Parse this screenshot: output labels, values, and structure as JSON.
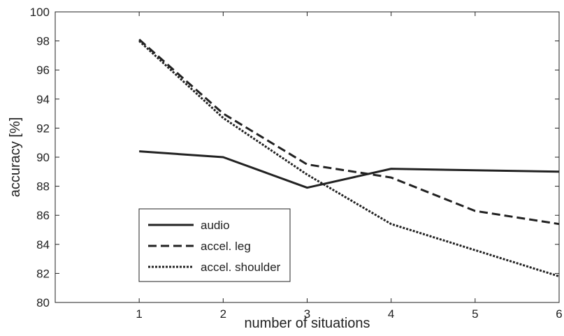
{
  "chart_data": {
    "type": "line",
    "title": "",
    "xlabel": "number of situations",
    "ylabel": "accuracy [%]",
    "xlim": [
      0,
      6
    ],
    "ylim": [
      80,
      100
    ],
    "x_ticks": [
      1,
      2,
      3,
      4,
      5,
      6
    ],
    "y_ticks": [
      80,
      82,
      84,
      86,
      88,
      90,
      92,
      94,
      96,
      98,
      100
    ],
    "x": [
      1,
      2,
      3,
      4,
      5,
      6
    ],
    "grid": false,
    "legend_position": "bottom-left",
    "series": [
      {
        "name": "audio",
        "style": "solid",
        "color": "#222222",
        "values": [
          90.4,
          90.0,
          87.9,
          89.2,
          89.1,
          89.0
        ]
      },
      {
        "name": "accel. leg",
        "style": "dashed",
        "color": "#222222",
        "values": [
          98.1,
          93.0,
          89.5,
          88.6,
          86.3,
          85.4
        ]
      },
      {
        "name": "accel. shoulder",
        "style": "dotted",
        "color": "#222222",
        "values": [
          98.0,
          92.7,
          88.8,
          85.4,
          83.6,
          81.8
        ]
      }
    ]
  }
}
